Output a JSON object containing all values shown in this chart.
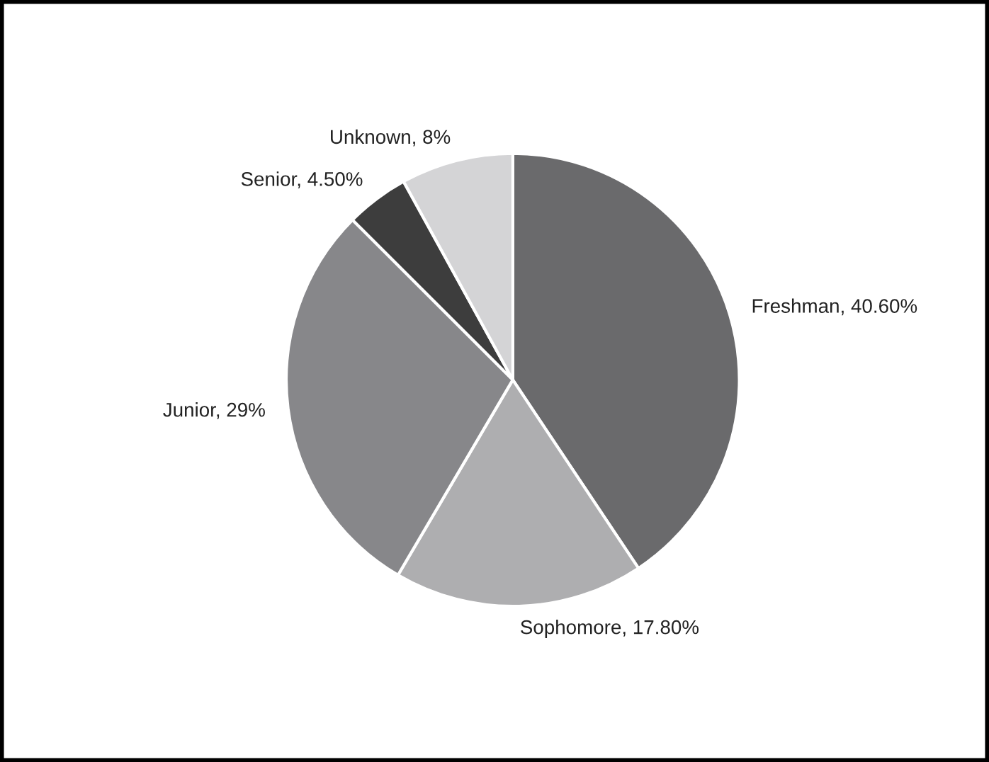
{
  "chart_data": {
    "type": "pie",
    "categories": [
      "Freshman",
      "Sophomore",
      "Junior",
      "Senior",
      "Unknown"
    ],
    "values": [
      40.6,
      17.8,
      29,
      4.5,
      8
    ],
    "value_labels": [
      "40.60%",
      "17.80%",
      "29%",
      "4.50%",
      "8%"
    ],
    "colors": [
      "#6a6a6c",
      "#aeaeb0",
      "#87878a",
      "#3d3d3d",
      "#d4d4d6"
    ]
  }
}
